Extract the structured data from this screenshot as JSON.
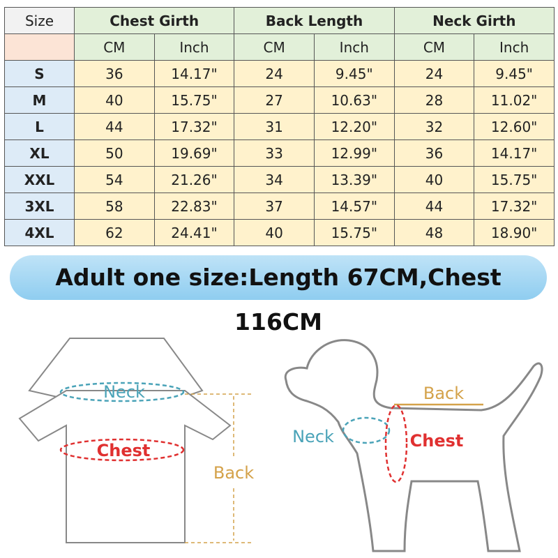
{
  "table": {
    "headers": [
      "Size",
      "Chest Girth",
      "Back Length",
      "Neck Girth"
    ],
    "units": [
      "CM",
      "Inch",
      "CM",
      "Inch",
      "CM",
      "Inch"
    ],
    "rows": [
      [
        "S",
        "36",
        "14.17\"",
        "24",
        "9.45\"",
        "24",
        "9.45\""
      ],
      [
        "M",
        "40",
        "15.75\"",
        "27",
        "10.63\"",
        "28",
        "11.02\""
      ],
      [
        "L",
        "44",
        "17.32\"",
        "31",
        "12.20\"",
        "32",
        "12.60\""
      ],
      [
        "XL",
        "50",
        "19.69\"",
        "33",
        "12.99\"",
        "36",
        "14.17\""
      ],
      [
        "XXL",
        "54",
        "21.26\"",
        "34",
        "13.39\"",
        "40",
        "15.75\""
      ],
      [
        "3XL",
        "58",
        "22.83\"",
        "37",
        "14.57\"",
        "44",
        "17.32\""
      ],
      [
        "4XL",
        "62",
        "24.41\"",
        "40",
        "15.75\"",
        "48",
        "18.90\""
      ]
    ]
  },
  "banner": "Adult one size:Length 67CM,Chest 116CM",
  "shirt_labels": {
    "neck": "Neck",
    "chest": "Chest",
    "back": "Back"
  },
  "dog_labels": {
    "back": "Back",
    "neck": "Neck",
    "chest": "Chest"
  }
}
